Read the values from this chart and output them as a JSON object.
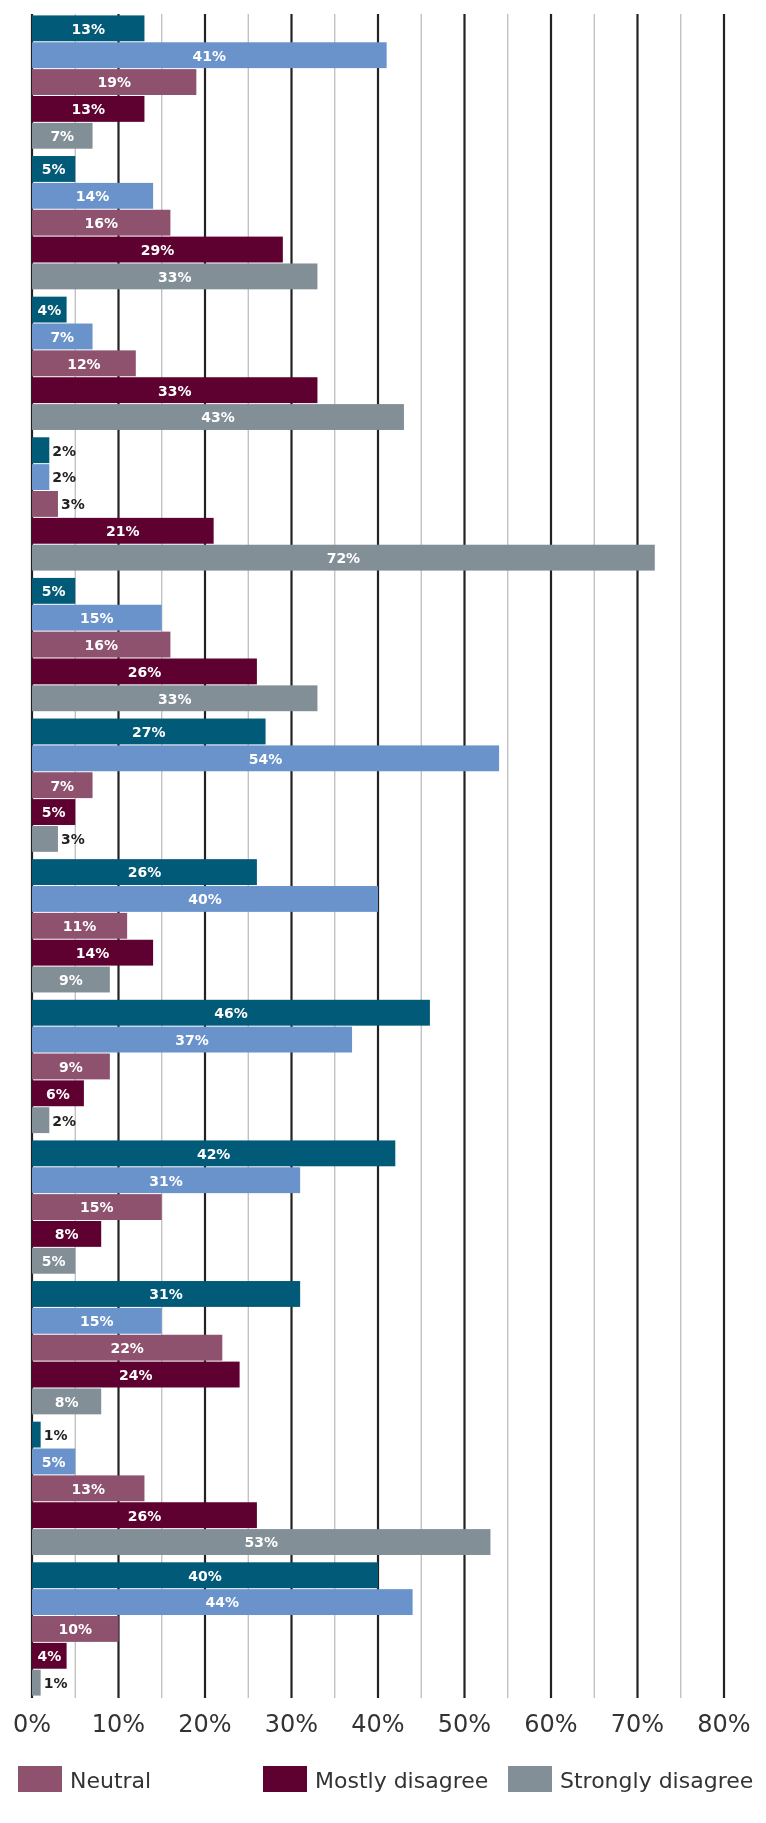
{
  "chart_data": {
    "type": "bar",
    "orientation": "horizontal",
    "categories": [
      null,
      null,
      null,
      null,
      null,
      null,
      null,
      null,
      null,
      null,
      null,
      null
    ],
    "series": [
      {
        "color": "#005a78",
        "values": [
          13,
          5,
          4,
          2,
          5,
          27,
          26,
          46,
          42,
          31,
          1,
          40
        ],
        "value_labels": [
          "13%",
          "5%",
          "4%",
          "2%",
          "5%",
          "27%",
          "26%",
          "46%",
          "42%",
          "31%",
          "1%",
          "40%"
        ]
      },
      {
        "color": "#6a93cc",
        "values": [
          41,
          14,
          7,
          2,
          15,
          54,
          40,
          37,
          31,
          15,
          5,
          44
        ],
        "value_labels": [
          "41%",
          "14%",
          "7%",
          "2%",
          "15%",
          "54%",
          "40%",
          "37%",
          "31%",
          "15%",
          "5%",
          "44%"
        ]
      },
      {
        "name": "Neutral",
        "color": "#8e526e",
        "values": [
          19,
          16,
          12,
          3,
          16,
          7,
          11,
          9,
          15,
          22,
          13,
          10
        ],
        "value_labels": [
          "19%",
          "16%",
          "12%",
          "3%",
          "16%",
          "7%",
          "11%",
          "9%",
          "15%",
          "22%",
          "13%",
          "10%"
        ]
      },
      {
        "name": "Mostly disagree",
        "color": "#5e0030",
        "values": [
          13,
          29,
          33,
          21,
          26,
          5,
          14,
          6,
          8,
          24,
          26,
          4
        ],
        "value_labels": [
          "13%",
          "29%",
          "33%",
          "21%",
          "26%",
          "5%",
          "14%",
          "6%",
          "8%",
          "24%",
          "26%",
          "4%"
        ]
      },
      {
        "name": "Strongly disagree",
        "color": "#838f97",
        "values": [
          7,
          33,
          43,
          72,
          33,
          3,
          9,
          2,
          5,
          8,
          53,
          1
        ],
        "value_labels": [
          "7%",
          "33%",
          "43%",
          "72%",
          "33%",
          "3%",
          "9%",
          "2%",
          "5%",
          "8%",
          "53%",
          "1%"
        ]
      }
    ],
    "xlim": [
      0,
      80
    ],
    "xticks": [
      {
        "value": 0,
        "label": "0%"
      },
      {
        "value": 5,
        "label": null
      },
      {
        "value": 10,
        "label": "10%"
      },
      {
        "value": 15,
        "label": null
      },
      {
        "value": 20,
        "label": "20%"
      },
      {
        "value": 25,
        "label": null
      },
      {
        "value": 30,
        "label": "30%"
      },
      {
        "value": 35,
        "label": null
      },
      {
        "value": 40,
        "label": "40%"
      },
      {
        "value": 45,
        "label": null
      },
      {
        "value": 50,
        "label": "50%"
      },
      {
        "value": 55,
        "label": null
      },
      {
        "value": 60,
        "label": "60%"
      },
      {
        "value": 65,
        "label": null
      },
      {
        "value": 70,
        "label": "70%"
      },
      {
        "value": 75,
        "label": null
      },
      {
        "value": 80,
        "label": "80%"
      }
    ],
    "grid": "x",
    "legend": "bottom"
  }
}
